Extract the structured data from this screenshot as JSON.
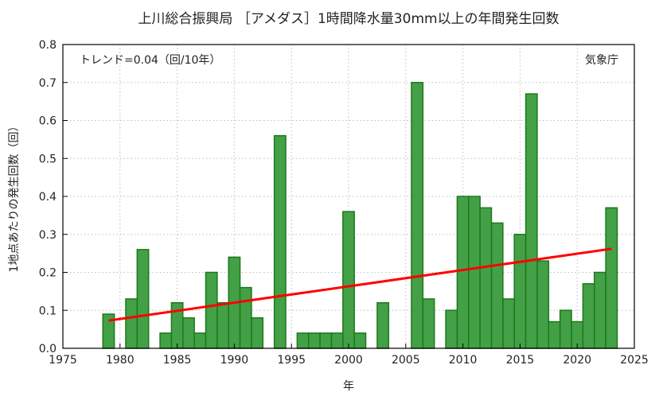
{
  "chart_data": {
    "type": "bar",
    "title": "上川総合振興局 ［アメダス］1時間降水量30mm以上の年間発生回数",
    "xlabel": "年",
    "ylabel": "1地点あたりの発生回数（回）",
    "xlim": [
      1975,
      2025
    ],
    "ylim": [
      0,
      0.8
    ],
    "xticks": [
      1975,
      1980,
      1985,
      1990,
      1995,
      2000,
      2005,
      2010,
      2015,
      2020,
      2025
    ],
    "yticks": [
      0.0,
      0.1,
      0.2,
      0.3,
      0.4,
      0.5,
      0.6,
      0.7,
      0.8
    ],
    "grid": true,
    "bar_color": "#43a047",
    "bar_edge_color": "#1b7a1b",
    "trend_color": "#ff0000",
    "trend_label": "トレンド=0.04（回/10年）",
    "source_label": "気象庁",
    "x": [
      1979,
      1981,
      1982,
      1984,
      1985,
      1986,
      1987,
      1988,
      1989,
      1990,
      1991,
      1992,
      1994,
      1996,
      1997,
      1998,
      1999,
      2000,
      2001,
      2003,
      2006,
      2007,
      2009,
      2010,
      2011,
      2012,
      2013,
      2014,
      2015,
      2016,
      2017,
      2018,
      2019,
      2020,
      2021,
      2022,
      2023
    ],
    "values": [
      0.09,
      0.13,
      0.26,
      0.04,
      0.12,
      0.08,
      0.04,
      0.2,
      0.12,
      0.24,
      0.16,
      0.08,
      0.56,
      0.04,
      0.04,
      0.04,
      0.04,
      0.36,
      0.04,
      0.12,
      0.7,
      0.13,
      0.1,
      0.4,
      0.4,
      0.37,
      0.33,
      0.13,
      0.3,
      0.67,
      0.23,
      0.07,
      0.1,
      0.07,
      0.17,
      0.2,
      0.37
    ],
    "trend": {
      "x": [
        1979,
        2023
      ],
      "y": [
        0.073,
        0.262
      ]
    }
  }
}
